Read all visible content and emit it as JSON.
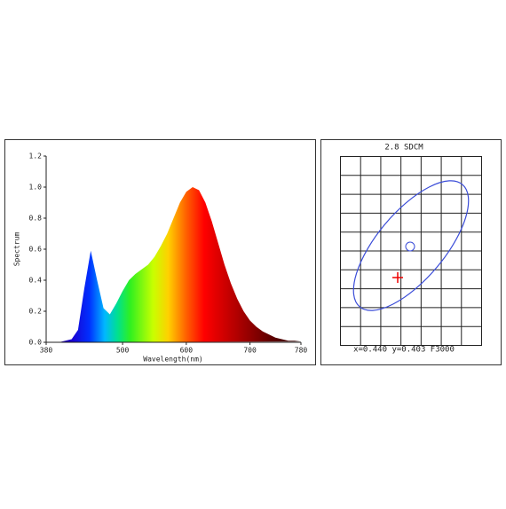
{
  "chart_data": [
    {
      "type": "area",
      "x_label": "Wavelength(nm)",
      "y_label": "Spectrum",
      "x": [
        380,
        390,
        400,
        410,
        420,
        430,
        440,
        450,
        460,
        470,
        480,
        490,
        500,
        510,
        520,
        530,
        540,
        550,
        560,
        570,
        580,
        590,
        600,
        610,
        620,
        630,
        640,
        650,
        660,
        670,
        680,
        690,
        700,
        710,
        720,
        730,
        740,
        750,
        760,
        770,
        780
      ],
      "values": [
        0,
        0,
        0,
        0.01,
        0.02,
        0.08,
        0.35,
        0.59,
        0.4,
        0.22,
        0.18,
        0.25,
        0.33,
        0.4,
        0.44,
        0.47,
        0.5,
        0.55,
        0.62,
        0.7,
        0.8,
        0.9,
        0.97,
        1.0,
        0.98,
        0.9,
        0.78,
        0.64,
        0.5,
        0.38,
        0.28,
        0.2,
        0.14,
        0.1,
        0.07,
        0.05,
        0.03,
        0.02,
        0.01,
        0.01,
        0.005
      ],
      "xlim": [
        380,
        780
      ],
      "xticks": [
        380,
        500,
        600,
        700,
        780
      ],
      "ylim": [
        0,
        1.2
      ],
      "yticks": [
        {
          "value": 0,
          "label": "0.0"
        },
        {
          "value": 0.2,
          "label": "0.2"
        },
        {
          "value": 0.4,
          "label": "0.4"
        },
        {
          "value": 0.6,
          "label": "0.6"
        },
        {
          "value": 0.8,
          "label": "0.8"
        },
        {
          "value": 1.0,
          "label": "1.0"
        },
        {
          "value": 1.2,
          "label": "1.2"
        }
      ]
    },
    {
      "type": "ellipse",
      "title": "2.8 SDCM",
      "caption": "x=0.440 y=0.403 F3000"
    }
  ]
}
